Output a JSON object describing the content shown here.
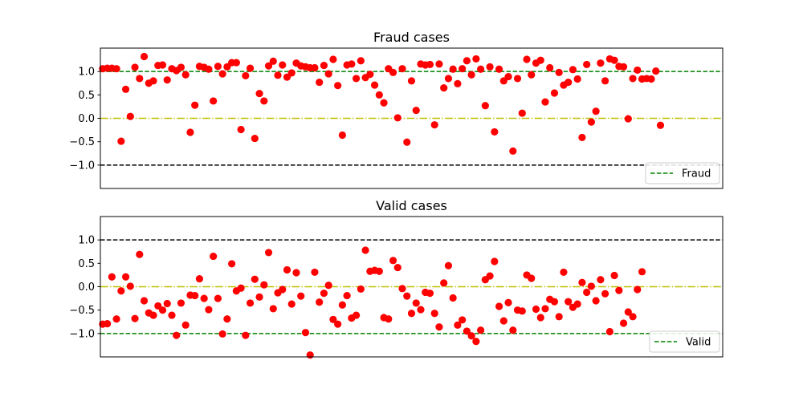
{
  "chart_data": [
    {
      "type": "scatter",
      "title": "Fraud cases",
      "xlabel": "",
      "ylabel": "",
      "x_ticks_visible": false,
      "ylim": [
        -1.5,
        1.5
      ],
      "xlim": [
        -0.5,
        134.5
      ],
      "yticks": [
        1.0,
        0.5,
        0.0,
        -0.5,
        -1.0
      ],
      "ytick_labels": [
        "1.0",
        "0.5",
        "0.0",
        "−0.5",
        "−1.0"
      ],
      "grid": false,
      "legend": {
        "placement": "lower-right",
        "entries": [
          "Fraud"
        ]
      },
      "point_color": "#ff0000",
      "reference_lines": [
        {
          "y": 1.0,
          "style": "dashed",
          "color": "#008000",
          "legend": "Fraud"
        },
        {
          "y": 0.0,
          "style": "dashdot",
          "color": "#bfbf00"
        },
        {
          "y": -1.0,
          "style": "dashed",
          "color": "#000000"
        }
      ],
      "series": [
        {
          "values": [
            1.06,
            1.07,
            1.07,
            1.06,
            -0.49,
            0.62,
            0.04,
            1.09,
            0.85,
            1.32,
            0.75,
            0.8,
            1.13,
            1.14,
            0.82,
            1.06,
            1.02,
            1.09,
            0.93,
            -0.3,
            0.28,
            1.11,
            1.09,
            1.05,
            0.37,
            1.11,
            0.95,
            1.1,
            1.19,
            1.19,
            -0.24,
            0.91,
            1.07,
            -0.43,
            0.53,
            0.37,
            1.12,
            1.22,
            0.92,
            1.14,
            0.88,
            0.97,
            1.18,
            1.12,
            1.1,
            1.08,
            1.08,
            0.77,
            1.13,
            0.95,
            1.26,
            0.7,
            -0.36,
            1.14,
            1.16,
            0.85,
            1.23,
            0.87,
            0.94,
            0.71,
            0.5,
            0.33,
            1.06,
            0.98,
            0.01,
            1.06,
            -0.51,
            0.8,
            0.17,
            1.16,
            1.14,
            1.15,
            -0.14,
            1.16,
            0.65,
            0.85,
            1.05,
            0.74,
            1.06,
            1.23,
            0.93,
            1.27,
            1.05,
            0.27,
            1.1,
            -0.29,
            1.05,
            0.8,
            0.89,
            -0.7,
            0.85,
            0.11,
            1.26,
            0.93,
            1.18,
            1.24,
            0.35,
            1.08,
            0.54,
            0.98,
            0.71,
            0.77,
            1.04,
            0.84,
            -0.41,
            1.15,
            -0.08,
            0.15,
            1.18,
            0.8,
            1.27,
            1.24,
            1.11,
            1.1,
            -0.01,
            0.85,
            1.03,
            0.84,
            0.85,
            0.84,
            1.01,
            -0.15
          ]
        }
      ]
    },
    {
      "type": "scatter",
      "title": "Valid cases",
      "xlabel": "",
      "ylabel": "",
      "x_ticks_visible": false,
      "ylim": [
        -1.5,
        1.5
      ],
      "xlim": [
        -0.5,
        134.5
      ],
      "yticks": [
        1.0,
        0.5,
        0.0,
        -0.5,
        -1.0
      ],
      "ytick_labels": [
        "1.0",
        "0.5",
        "0.0",
        "−0.5",
        "−1.0"
      ],
      "grid": false,
      "legend": {
        "placement": "lower-right",
        "entries": [
          "Valid"
        ]
      },
      "point_color": "#ff0000",
      "reference_lines": [
        {
          "y": 1.0,
          "style": "dashed",
          "color": "#000000"
        },
        {
          "y": 0.0,
          "style": "dashdot",
          "color": "#bfbf00"
        },
        {
          "y": -1.0,
          "style": "dashed",
          "color": "#008000",
          "legend": "Valid"
        }
      ],
      "series": [
        {
          "values": [
            -0.8,
            -0.79,
            0.21,
            -0.69,
            -0.09,
            0.21,
            0.01,
            -0.68,
            0.69,
            -0.3,
            -0.56,
            -0.61,
            -0.41,
            -0.5,
            -0.36,
            -0.61,
            -1.04,
            -0.35,
            -0.82,
            -0.18,
            -0.19,
            0.17,
            -0.25,
            -0.49,
            0.65,
            -0.25,
            -1.01,
            -0.69,
            0.49,
            -0.09,
            -0.03,
            -1.04,
            -0.35,
            0.16,
            -0.22,
            0.04,
            0.73,
            -0.47,
            -0.13,
            -0.06,
            0.36,
            -0.37,
            0.3,
            -0.2,
            -0.98,
            -1.46,
            0.31,
            -0.33,
            -0.14,
            0.03,
            -0.7,
            -0.8,
            -0.39,
            -0.19,
            -0.67,
            -0.61,
            -0.05,
            0.78,
            0.33,
            0.35,
            0.33,
            -0.66,
            -0.69,
            0.56,
            0.41,
            -0.04,
            -0.2,
            -0.57,
            -0.35,
            -0.49,
            -0.12,
            -0.14,
            -0.57,
            -0.86,
            0.08,
            0.45,
            -0.24,
            -0.82,
            -0.71,
            -0.95,
            -1.05,
            -1.17,
            -0.93,
            0.15,
            0.23,
            0.54,
            -0.42,
            -0.73,
            -0.34,
            -0.93,
            -0.5,
            -0.52,
            0.25,
            0.18,
            -0.48,
            -0.66,
            -0.47,
            -0.27,
            -0.32,
            -0.64,
            0.31,
            -0.32,
            -0.44,
            -0.37,
            0.09,
            -0.12,
            0.01,
            -0.3,
            0.15,
            -0.15,
            -0.96,
            0.24,
            -0.08,
            -0.78,
            -0.54,
            -0.64,
            -0.06,
            0.32
          ]
        }
      ]
    }
  ]
}
